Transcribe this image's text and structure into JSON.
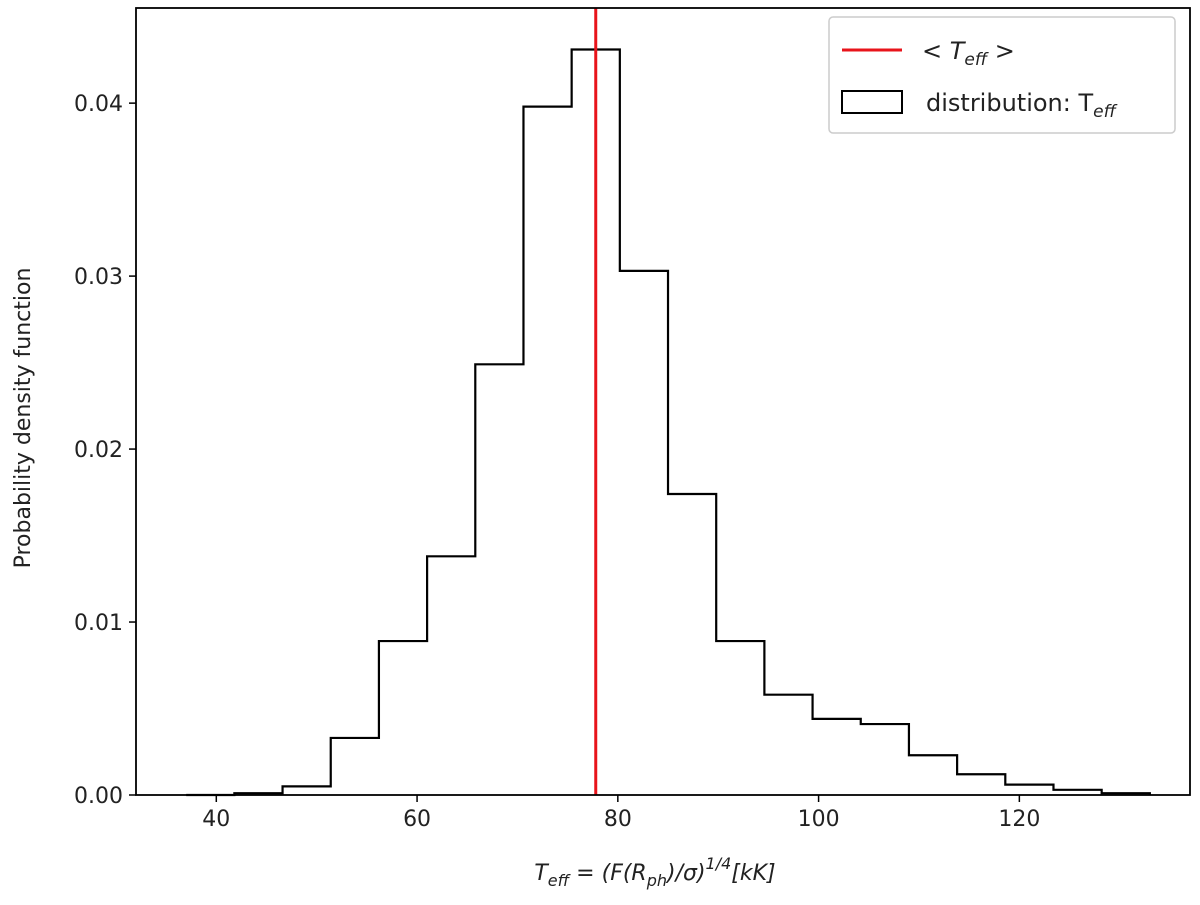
{
  "chart_data": {
    "type": "histogram",
    "bin_edges": [
      37.0,
      41.8,
      46.6,
      51.4,
      56.2,
      61.0,
      65.8,
      70.6,
      75.4,
      80.2,
      85.0,
      89.8,
      94.6,
      99.4,
      104.2,
      109.0,
      113.8,
      118.6,
      123.4,
      128.2,
      133.0
    ],
    "values": [
      0.0,
      0.0001,
      0.0005,
      0.0033,
      0.0089,
      0.0138,
      0.0249,
      0.0398,
      0.0431,
      0.0303,
      0.0174,
      0.0089,
      0.0058,
      0.0044,
      0.0041,
      0.0023,
      0.0012,
      0.0006,
      0.0003,
      0.0001
    ],
    "mean_line": {
      "x": 77.8,
      "color": "#e8141b"
    },
    "xlim": [
      32,
      137
    ],
    "ylim": [
      0,
      0.0455
    ],
    "xticks": [
      40,
      60,
      80,
      100,
      120
    ],
    "xtick_labels": [
      "40",
      "60",
      "80",
      "100",
      "120"
    ],
    "yticks": [
      0,
      0.01,
      0.02,
      0.03,
      0.04
    ],
    "ytick_labels": [
      "0.00",
      "0.01",
      "0.02",
      "0.03",
      "0.04"
    ],
    "ylabel": "Probability density function",
    "xlabel": {
      "T": "T",
      "eff": "eff",
      "eq": " = (F(R",
      "ph": "ph",
      "rest": ")/σ)",
      "sup": "1/4",
      "unit": "[kK]"
    },
    "legend": {
      "position": "top-right",
      "mean_entry": {
        "left": "< T",
        "sub": "eff",
        "right": " >"
      },
      "dist_entry": {
        "text": "distribution: T",
        "sub": "eff"
      }
    },
    "colors": {
      "histogram": "#000000",
      "mean": "#e8141b",
      "frame": "#000000"
    }
  }
}
